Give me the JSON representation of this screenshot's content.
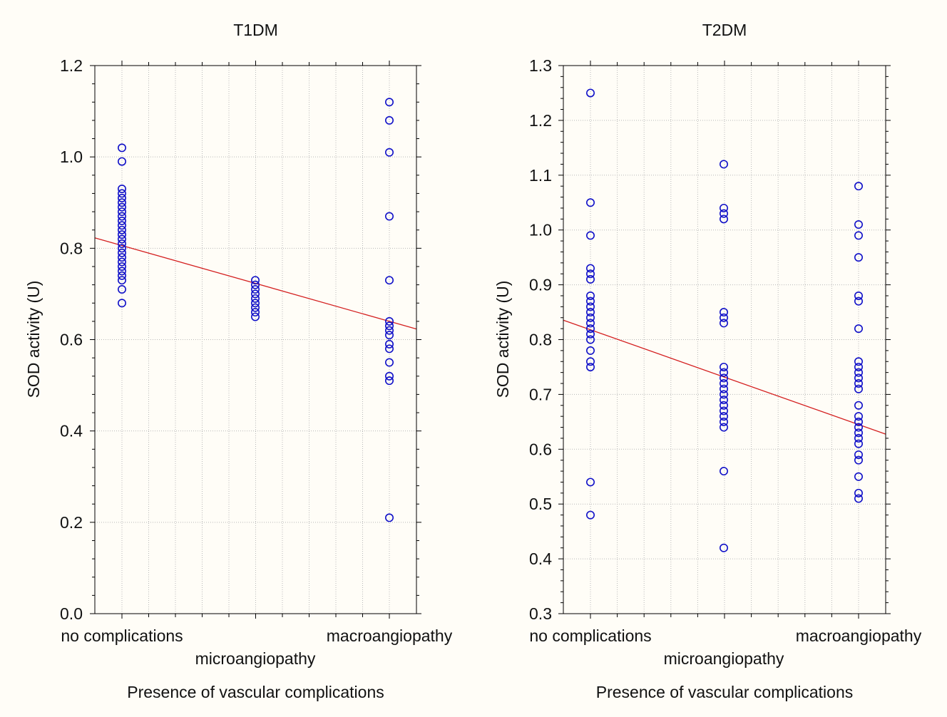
{
  "chart_data": [
    {
      "type": "scatter",
      "title": "T1DM",
      "xlabel": "Presence of vascular complications",
      "ylabel": "SOD activity (U)",
      "categories": [
        "no complications",
        "microangiopathy",
        "macroangiopathy"
      ],
      "ylim": [
        0.0,
        1.2
      ],
      "yticks": [
        "0.0",
        "0.2",
        "0.4",
        "0.6",
        "0.8",
        "1.0",
        "1.2"
      ],
      "grid": true,
      "points": [
        {
          "category": "no complications",
          "values": [
            1.02,
            0.99,
            0.93,
            0.92,
            0.91,
            0.9,
            0.89,
            0.88,
            0.87,
            0.86,
            0.85,
            0.84,
            0.83,
            0.82,
            0.81,
            0.8,
            0.79,
            0.78,
            0.77,
            0.76,
            0.75,
            0.74,
            0.73,
            0.71,
            0.68
          ]
        },
        {
          "category": "microangiopathy",
          "values": [
            0.73,
            0.72,
            0.71,
            0.7,
            0.69,
            0.68,
            0.67,
            0.66,
            0.65
          ]
        },
        {
          "category": "macroangiopathy",
          "values": [
            1.12,
            1.08,
            1.01,
            0.87,
            0.73,
            0.64,
            0.63,
            0.62,
            0.61,
            0.59,
            0.58,
            0.55,
            0.52,
            0.51,
            0.21
          ]
        }
      ],
      "trendline": {
        "at_first_category": 0.806,
        "at_last_category": 0.64
      },
      "marker_color": "#1010c8",
      "line_color": "#d42020"
    },
    {
      "type": "scatter",
      "title": "T2DM",
      "xlabel": "Presence of vascular complications",
      "ylabel": "SOD activity (U)",
      "categories": [
        "no complications",
        "microangiopathy",
        "macroangiopathy"
      ],
      "ylim": [
        0.3,
        1.3
      ],
      "yticks": [
        "0.3",
        "0.4",
        "0.5",
        "0.6",
        "0.7",
        "0.8",
        "0.9",
        "1.0",
        "1.1",
        "1.2",
        "1.3"
      ],
      "grid": true,
      "points": [
        {
          "category": "no complications",
          "values": [
            1.25,
            1.05,
            0.99,
            0.93,
            0.92,
            0.91,
            0.88,
            0.87,
            0.86,
            0.85,
            0.84,
            0.83,
            0.82,
            0.81,
            0.8,
            0.78,
            0.76,
            0.75,
            0.54,
            0.48
          ]
        },
        {
          "category": "microangiopathy",
          "values": [
            1.12,
            1.04,
            1.03,
            1.02,
            0.85,
            0.84,
            0.83,
            0.75,
            0.74,
            0.73,
            0.72,
            0.71,
            0.7,
            0.69,
            0.68,
            0.67,
            0.66,
            0.65,
            0.64,
            0.56,
            0.42
          ]
        },
        {
          "category": "macroangiopathy",
          "values": [
            1.08,
            1.01,
            0.99,
            0.95,
            0.88,
            0.87,
            0.82,
            0.76,
            0.75,
            0.74,
            0.73,
            0.72,
            0.71,
            0.68,
            0.66,
            0.65,
            0.64,
            0.63,
            0.62,
            0.61,
            0.59,
            0.58,
            0.55,
            0.52,
            0.51
          ]
        }
      ],
      "trendline": {
        "at_first_category": 0.818,
        "at_last_category": 0.645
      },
      "marker_color": "#1010c8",
      "line_color": "#d42020"
    }
  ]
}
